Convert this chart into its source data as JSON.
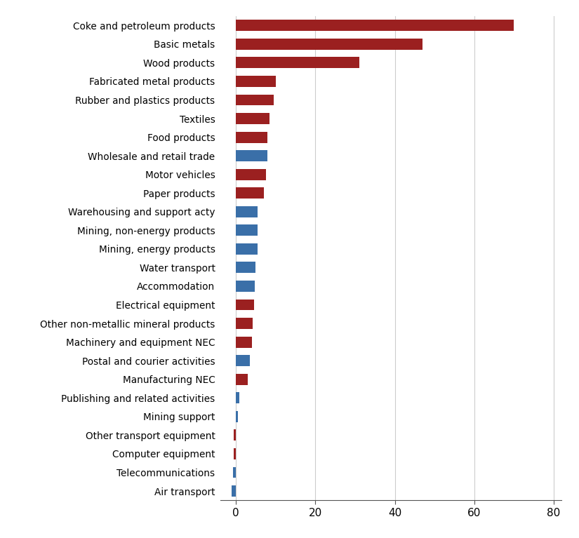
{
  "categories": [
    "Coke and petroleum products",
    "Basic metals",
    "Wood products",
    "Fabricated metal products",
    "Rubber and plastics products",
    "Textiles",
    "Food products",
    "Wholesale and retail trade",
    "Motor vehicles",
    "Paper products",
    "Warehousing and support acty",
    "Mining, non-energy products",
    "Mining, energy products",
    "Water transport",
    "Accommodation",
    "Electrical equipment",
    "Other non-metallic mineral products",
    "Machinery and equipment NEC",
    "Postal and courier activities",
    "Manufacturing NEC",
    "Publishing and related activities",
    "Mining support",
    "Other transport equipment",
    "Computer equipment",
    "Telecommunications",
    "Air transport"
  ],
  "values": [
    70,
    47,
    31,
    10,
    9.5,
    8.5,
    8.0,
    8.0,
    7.5,
    7.0,
    5.5,
    5.5,
    5.5,
    5.0,
    4.8,
    4.5,
    4.2,
    4.0,
    3.5,
    3.0,
    0.8,
    0.5,
    -0.5,
    -0.5,
    -0.8,
    -1.0
  ],
  "colors": [
    "#9b2020",
    "#9b2020",
    "#9b2020",
    "#9b2020",
    "#9b2020",
    "#9b2020",
    "#9b2020",
    "#3a6fa8",
    "#9b2020",
    "#9b2020",
    "#3a6fa8",
    "#3a6fa8",
    "#3a6fa8",
    "#3a6fa8",
    "#3a6fa8",
    "#9b2020",
    "#9b2020",
    "#9b2020",
    "#3a6fa8",
    "#9b2020",
    "#3a6fa8",
    "#3a6fa8",
    "#9b2020",
    "#9b2020",
    "#3a6fa8",
    "#3a6fa8"
  ],
  "xlim": [
    -4,
    82
  ],
  "xticks": [
    0,
    20,
    40,
    60,
    80
  ],
  "background_color": "#ffffff",
  "grid_color": "#cccccc",
  "bar_height": 0.6,
  "fontsize_labels": 9.8,
  "fontsize_xticks": 11
}
